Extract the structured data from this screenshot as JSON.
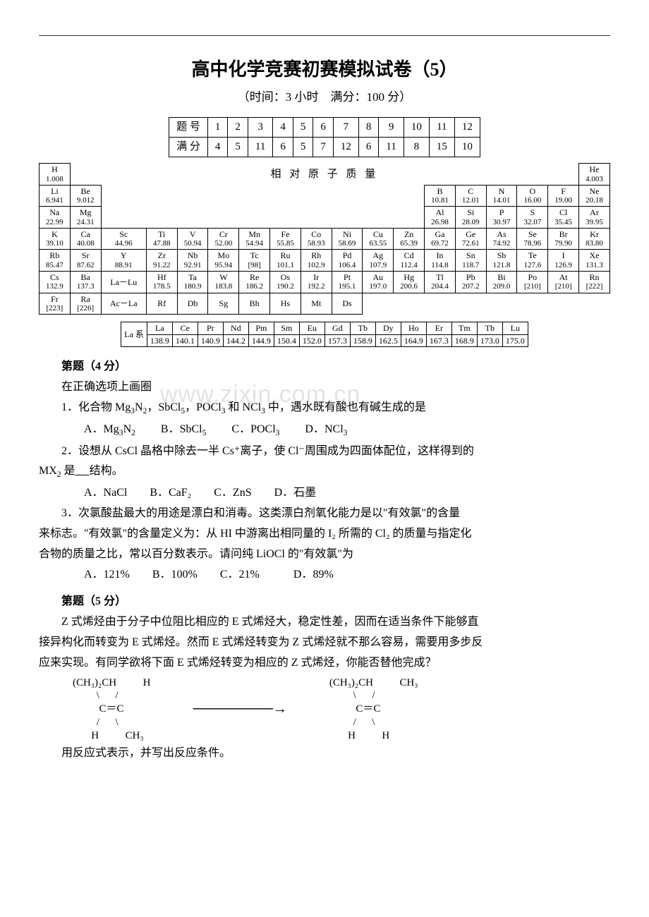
{
  "title": "高中化学竞赛初赛模拟试卷（5）",
  "subtitle": "（时间：3 小时　满分：100 分）",
  "score_table": {
    "row1": [
      "题 号",
      "1",
      "2",
      "3",
      "4",
      "5",
      "6",
      "7",
      "8",
      "9",
      "10",
      "11",
      "12"
    ],
    "row2": [
      "满 分",
      "4",
      "5",
      "11",
      "6",
      "5",
      "7",
      "12",
      "6",
      "11",
      "8",
      "15",
      "10"
    ]
  },
  "periodic_title": "相 对 原 子 质 量",
  "periodic": [
    [
      {
        "s": "H",
        "m": "1.008"
      },
      null,
      null,
      null,
      null,
      null,
      null,
      null,
      null,
      null,
      null,
      null,
      null,
      null,
      null,
      null,
      null,
      {
        "s": "He",
        "m": "4.003"
      }
    ],
    [
      {
        "s": "Li",
        "m": "6.941"
      },
      {
        "s": "Be",
        "m": "9.012"
      },
      null,
      null,
      null,
      null,
      null,
      null,
      null,
      null,
      null,
      null,
      {
        "s": "B",
        "m": "10.81"
      },
      {
        "s": "C",
        "m": "12.01"
      },
      {
        "s": "N",
        "m": "14.01"
      },
      {
        "s": "O",
        "m": "16.00"
      },
      {
        "s": "F",
        "m": "19.00"
      },
      {
        "s": "Ne",
        "m": "20.18"
      }
    ],
    [
      {
        "s": "Na",
        "m": "22.99"
      },
      {
        "s": "Mg",
        "m": "24.31"
      },
      null,
      null,
      null,
      null,
      null,
      null,
      null,
      null,
      null,
      null,
      {
        "s": "Al",
        "m": "26.98"
      },
      {
        "s": "Si",
        "m": "28.09"
      },
      {
        "s": "P",
        "m": "30.97"
      },
      {
        "s": "S",
        "m": "32.07"
      },
      {
        "s": "Cl",
        "m": "35.45"
      },
      {
        "s": "Ar",
        "m": "39.95"
      }
    ],
    [
      {
        "s": "K",
        "m": "39.10"
      },
      {
        "s": "Ca",
        "m": "40.08"
      },
      {
        "s": "Sc",
        "m": "44.96"
      },
      {
        "s": "Ti",
        "m": "47.88"
      },
      {
        "s": "V",
        "m": "50.94"
      },
      {
        "s": "Cr",
        "m": "52.00"
      },
      {
        "s": "Mn",
        "m": "54.94"
      },
      {
        "s": "Fe",
        "m": "55.85"
      },
      {
        "s": "Co",
        "m": "58.93"
      },
      {
        "s": "Ni",
        "m": "58.69"
      },
      {
        "s": "Cu",
        "m": "63.55"
      },
      {
        "s": "Zn",
        "m": "65.39"
      },
      {
        "s": "Ga",
        "m": "69.72"
      },
      {
        "s": "Ge",
        "m": "72.61"
      },
      {
        "s": "As",
        "m": "74.92"
      },
      {
        "s": "Se",
        "m": "78.96"
      },
      {
        "s": "Br",
        "m": "79.90"
      },
      {
        "s": "Kr",
        "m": "83.80"
      }
    ],
    [
      {
        "s": "Rb",
        "m": "85.47"
      },
      {
        "s": "Sr",
        "m": "87.62"
      },
      {
        "s": "Y",
        "m": "88.91"
      },
      {
        "s": "Zr",
        "m": "91.22"
      },
      {
        "s": "Nb",
        "m": "92.91"
      },
      {
        "s": "Mo",
        "m": "95.94"
      },
      {
        "s": "Tc",
        "m": "[98]"
      },
      {
        "s": "Ru",
        "m": "101.1"
      },
      {
        "s": "Rh",
        "m": "102.9"
      },
      {
        "s": "Pd",
        "m": "106.4"
      },
      {
        "s": "Ag",
        "m": "107.9"
      },
      {
        "s": "Cd",
        "m": "112.4"
      },
      {
        "s": "In",
        "m": "114.8"
      },
      {
        "s": "Sn",
        "m": "118.7"
      },
      {
        "s": "Sb",
        "m": "121.8"
      },
      {
        "s": "Te",
        "m": "127.6"
      },
      {
        "s": "I",
        "m": "126.9"
      },
      {
        "s": "Xe",
        "m": "131.3"
      }
    ],
    [
      {
        "s": "Cs",
        "m": "132.9"
      },
      {
        "s": "Ba",
        "m": "137.3"
      },
      {
        "s": "La－Lu",
        "m": ""
      },
      {
        "s": "Hf",
        "m": "178.5"
      },
      {
        "s": "Ta",
        "m": "180.9"
      },
      {
        "s": "W",
        "m": "183.8"
      },
      {
        "s": "Re",
        "m": "186.2"
      },
      {
        "s": "Os",
        "m": "190.2"
      },
      {
        "s": "Ir",
        "m": "192.2"
      },
      {
        "s": "Pt",
        "m": "195.1"
      },
      {
        "s": "Au",
        "m": "197.0"
      },
      {
        "s": "Hg",
        "m": "200.6"
      },
      {
        "s": "Tl",
        "m": "204.4"
      },
      {
        "s": "Pb",
        "m": "207.2"
      },
      {
        "s": "Bi",
        "m": "209.0"
      },
      {
        "s": "Po",
        "m": "[210]"
      },
      {
        "s": "At",
        "m": "[210]"
      },
      {
        "s": "Rn",
        "m": "[222]"
      }
    ],
    [
      {
        "s": "Fr",
        "m": "[223]"
      },
      {
        "s": "Ra",
        "m": "[226]"
      },
      {
        "s": "Ac－La",
        "m": ""
      },
      {
        "s": "Rf",
        "m": ""
      },
      {
        "s": "Db",
        "m": ""
      },
      {
        "s": "Sg",
        "m": ""
      },
      {
        "s": "Bh",
        "m": ""
      },
      {
        "s": "Hs",
        "m": ""
      },
      {
        "s": "Mt",
        "m": ""
      },
      {
        "s": "Ds",
        "m": ""
      },
      null,
      null,
      null,
      null,
      null,
      null,
      null,
      null
    ]
  ],
  "la_label": "La 系",
  "la_row": [
    {
      "s": "La",
      "m": "138.9"
    },
    {
      "s": "Ce",
      "m": "140.1"
    },
    {
      "s": "Pr",
      "m": "140.9"
    },
    {
      "s": "Nd",
      "m": "144.2"
    },
    {
      "s": "Pm",
      "m": "144.9"
    },
    {
      "s": "Sm",
      "m": "150.4"
    },
    {
      "s": "Eu",
      "m": "152.0"
    },
    {
      "s": "Gd",
      "m": "157.3"
    },
    {
      "s": "Tb",
      "m": "158.9"
    },
    {
      "s": "Dy",
      "m": "162.5"
    },
    {
      "s": "Ho",
      "m": "164.9"
    },
    {
      "s": "Er",
      "m": "167.3"
    },
    {
      "s": "Tm",
      "m": "168.9"
    },
    {
      "s": "Tb",
      "m": "173.0"
    },
    {
      "s": "Lu",
      "m": "175.0"
    }
  ],
  "q1": {
    "head": "第题（4 分）",
    "intro": "在正确选项上画圈",
    "watermark": "www.zixin.com.cn",
    "p1_a": "1．化合物 Mg",
    "p1_b": "，SbCl",
    "p1_c": "，POCl",
    "p1_d": " 和 NCl",
    "p1_e": " 中，遇水既有酸也有碱生成的是",
    "opt1_a": "A．Mg",
    "opt1_b": "B．SbCl",
    "opt1_c": "C．POCl",
    "opt1_d": "D．NCl",
    "p2": "2．设想从 CsCl 晶格中除去一半 Cs⁺离子，使 Cl⁻周围成为四面体配位，这样得到的",
    "p2b_pre": "MX",
    "p2b_post": " 是",
    "p2b_blank": "结构。",
    "opt2": "A．NaCl　　B．CaF₂　　C．ZnS　　D．石墨",
    "p3a": "3．次氯酸盐最大的用途是漂白和消毒。这类漂白剂氧化能力是以\"有效氯\"的含量",
    "p3b": "来标志。\"有效氯\"的含量定义为：从 HI 中游离出相同量的 I₂ 所需的 Cl₂ 的质量与指定化",
    "p3c": "合物的质量之比，常以百分数表示。请问纯 LiOCl 的\"有效氯\"为",
    "opt3": "A．121%　　B．100%　　C．21%　　　D．89%"
  },
  "q2": {
    "head": "第题（5 分）",
    "p1": "Z 式烯烃由于分子中位阻比相应的 E 式烯烃大，稳定性差，因而在适当条件下能够直",
    "p2": "接异构化而转变为 E 式烯烃。然而 E 式烯烃转变为 Z 式烯烃就不那么容易，需要用多步反",
    "p3": "应来实现。有同学欲将下面 E 式烯烃转变为相应的 Z 式烯烃，你能否替他完成？",
    "mol_left": {
      "l1": "(CH₃)₂CH          H",
      "l2": "         \\      /",
      "l3": "          C＝C",
      "l4": "         /      \\",
      "l5": "       H          CH₃"
    },
    "arrow": "────────→",
    "mol_right": {
      "l1": "(CH₃)₂CH          CH₃",
      "l2": "         \\      /",
      "l3": "          C＝C",
      "l4": "         /      \\",
      "l5": "       H          H"
    },
    "p4": "用反应式表示，并写出反应条件。"
  }
}
